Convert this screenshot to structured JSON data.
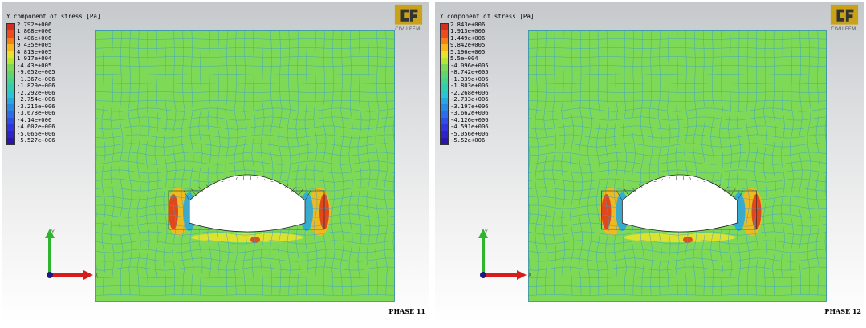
{
  "panels": [
    {
      "title": "Y component of stress [Pa]",
      "ticks": [
        "2.792e+006",
        "1.868e+006",
        "1.406e+006",
        "9.435e+005",
        "4.813e+005",
        "1.917e+004",
        "-4.43e+005",
        "-9.052e+005",
        "-1.367e+006",
        "-1.829e+006",
        "-2.292e+006",
        "-2.754e+006",
        "-3.216e+006",
        "-3.678e+006",
        "-4.14e+006",
        "-4.602e+006",
        "-5.065e+006",
        "-5.527e+006"
      ],
      "phase": "PHASE 11",
      "logo_text": "CIVILFEM",
      "axis_x": "X",
      "axis_y": "Y"
    },
    {
      "title": "Y component of stress [Pa]",
      "ticks": [
        "2.843e+006",
        "1.913e+006",
        "1.449e+006",
        "9.842e+005",
        "5.196e+005",
        "5.5e+004",
        "-4.096e+005",
        "-8.742e+005",
        "-1.339e+006",
        "-1.803e+006",
        "-2.268e+006",
        "-2.733e+006",
        "-3.197e+006",
        "-3.662e+006",
        "-4.126e+006",
        "-4.591e+006",
        "-5.056e+006",
        "-5.52e+006"
      ],
      "phase": "PHASE 12",
      "logo_text": "CIVILFEM",
      "axis_x": "X",
      "axis_y": "Y"
    }
  ],
  "colors": {
    "mesh_fill": "#7ed957",
    "mesh_line": "#3fa0c8",
    "colorbar": [
      "#d62d20",
      "#f04b1c",
      "#f77e1a",
      "#f9b61b",
      "#e8e22b",
      "#b5e634",
      "#7ed957",
      "#5ed66d",
      "#45d48c",
      "#31cfb0",
      "#28c6d4",
      "#29a8e0",
      "#2a89e6",
      "#2c6be9",
      "#2e4ee8",
      "#3132e0",
      "#2f22c9",
      "#2a16a8"
    ]
  }
}
